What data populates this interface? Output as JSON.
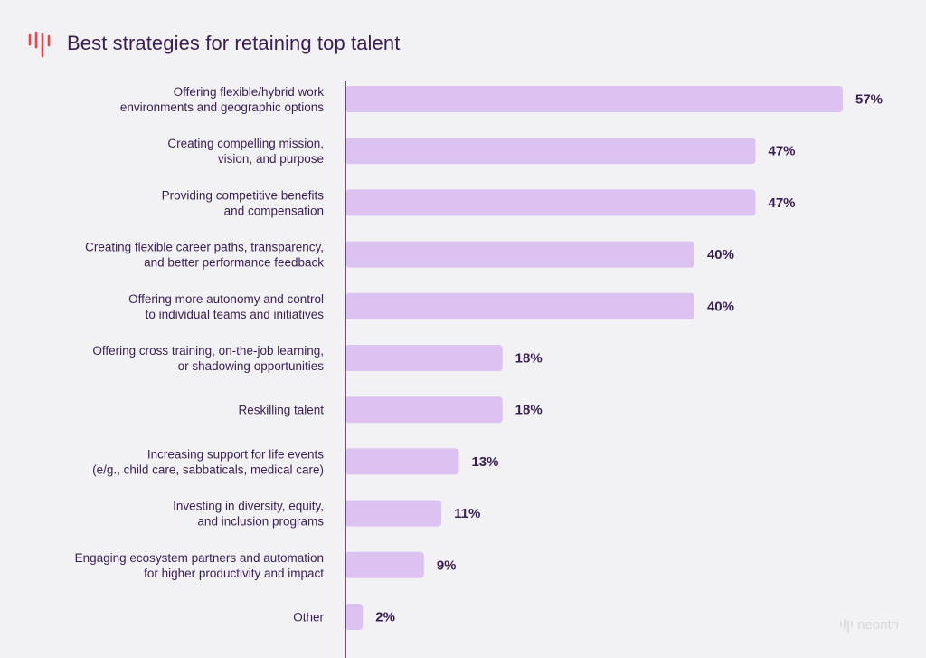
{
  "header": {
    "title": "Best strategies for retaining top talent",
    "logo_icon": "soundwave-logo-icon"
  },
  "brand": {
    "name": "neontri",
    "icon": "soundwave-logo-icon"
  },
  "colors": {
    "bar": "#dcc2f0",
    "text": "#3a1f52",
    "axis": "#3a1f52",
    "logo": "#e8434f",
    "background": "#f2f1f4"
  },
  "chart_data": {
    "type": "bar",
    "orientation": "horizontal",
    "categories": [
      [
        "Offering flexible/hybrid work",
        "environments and geographic options"
      ],
      [
        "Creating compelling mission,",
        "vision, and purpose"
      ],
      [
        "Providing competitive benefits",
        "and compensation"
      ],
      [
        "Creating flexible career paths, transparency,",
        "and better performance feedback"
      ],
      [
        "Offering more autonomy and control",
        "to individual teams and initiatives"
      ],
      [
        "Offering cross training, on-the-job learning,",
        "or shadowing opportunities"
      ],
      [
        "Reskilling talent"
      ],
      [
        "Increasing support for life events",
        "(e/g., child care, sabbaticals, medical care)"
      ],
      [
        "Investing in diversity, equity,",
        "and inclusion programs"
      ],
      [
        "Engaging ecosystem partners and automation",
        "for higher productivity and impact"
      ],
      [
        "Other"
      ]
    ],
    "values": [
      57,
      47,
      47,
      40,
      40,
      18,
      18,
      13,
      11,
      9,
      2
    ],
    "value_labels": [
      "57%",
      "47%",
      "47%",
      "40%",
      "40%",
      "18%",
      "18%",
      "13%",
      "11%",
      "9%",
      "2%"
    ],
    "unit": "%",
    "title": "Best strategies for retaining top talent",
    "xlim": [
      0,
      57
    ],
    "grid": false,
    "legend": "none"
  }
}
